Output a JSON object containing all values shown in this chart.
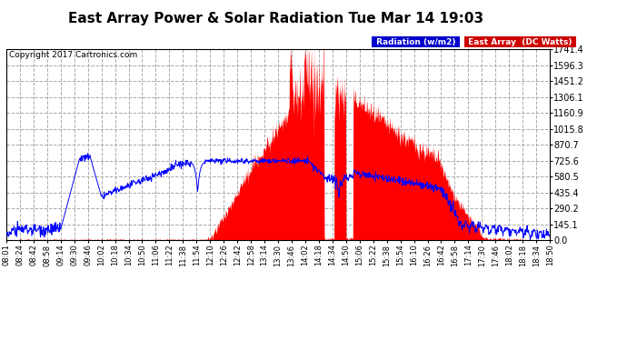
{
  "title": "East Array Power & Solar Radiation Tue Mar 14 19:03",
  "copyright": "Copyright 2017 Cartronics.com",
  "legend_radiation": "Radiation (w/m2)",
  "legend_east": "East Array  (DC Watts)",
  "yticks": [
    0.0,
    145.1,
    290.2,
    435.4,
    580.5,
    725.6,
    870.7,
    1015.8,
    1160.9,
    1306.1,
    1451.2,
    1596.3,
    1741.4
  ],
  "ymax": 1741.4,
  "ymin": 0.0,
  "xtick_labels": [
    "08:01",
    "08:24",
    "08:42",
    "08:58",
    "09:14",
    "09:30",
    "09:46",
    "10:02",
    "10:18",
    "10:34",
    "10:50",
    "11:06",
    "11:22",
    "11:38",
    "11:54",
    "12:10",
    "12:26",
    "12:42",
    "12:58",
    "13:14",
    "13:30",
    "13:46",
    "14:02",
    "14:18",
    "14:34",
    "14:50",
    "15:06",
    "15:22",
    "15:38",
    "15:54",
    "16:10",
    "16:26",
    "16:42",
    "16:58",
    "17:14",
    "17:30",
    "17:46",
    "18:02",
    "18:18",
    "18:34",
    "18:50"
  ],
  "bg_color": "#ffffff",
  "red_color": "#ff0000",
  "blue_color": "#0000ff",
  "blue_legend_color": "#0000cc",
  "red_legend_color": "#cc0000",
  "title_fontsize": 11,
  "ytick_fontsize": 7,
  "xtick_fontsize": 6,
  "copyright_fontsize": 6.5
}
